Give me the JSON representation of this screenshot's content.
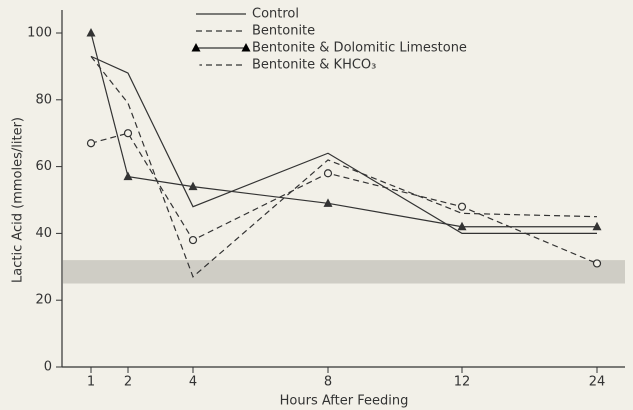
{
  "chart_data": {
    "type": "line",
    "x_label": "Hours After Feeding",
    "y_label": "Lactic Acid (mmoles/liter)",
    "categories": [
      "1",
      "2",
      "4",
      "8",
      "12",
      "24"
    ],
    "ylim": [
      0,
      100
    ],
    "yticks": [
      0,
      20,
      40,
      60,
      80,
      100
    ],
    "band": [
      25,
      32
    ],
    "band_color": "#b8b6ae",
    "series": [
      {
        "name": "Control",
        "color": "#333333",
        "dash": false,
        "marker": null,
        "values": [
          93,
          88,
          48,
          64,
          40,
          40
        ]
      },
      {
        "name": "Bentonite",
        "color": "#333333",
        "dash": true,
        "marker": null,
        "values": [
          93,
          79,
          27,
          62,
          46,
          45
        ]
      },
      {
        "name": "Bentonite & Dolomitic Limestone",
        "color": "#333333",
        "dash": false,
        "marker": "triangle",
        "values": [
          100,
          57,
          54,
          49,
          42,
          42
        ]
      },
      {
        "name": "Bentonite & KHCO₃",
        "color": "#333333",
        "dash": true,
        "marker": "circle",
        "values": [
          67,
          70,
          38,
          58,
          48,
          31
        ]
      }
    ]
  }
}
